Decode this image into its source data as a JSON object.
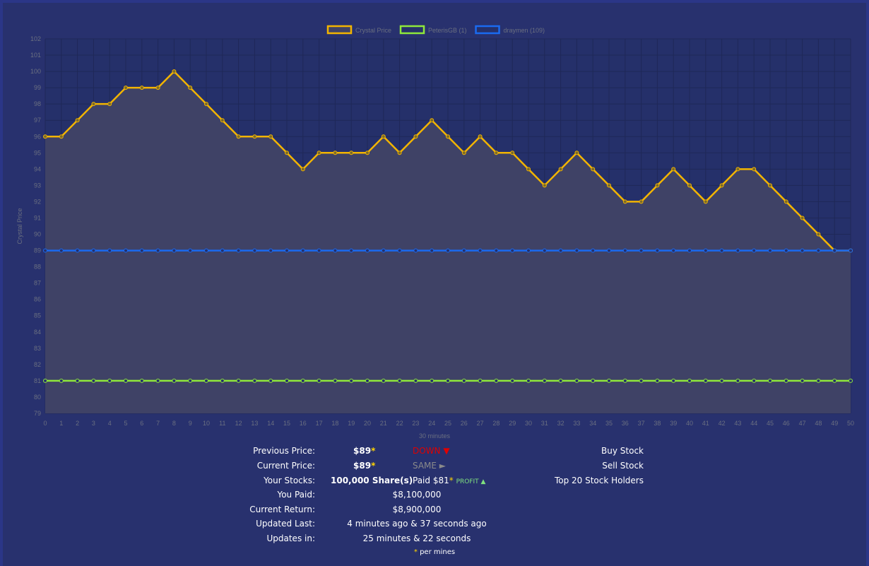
{
  "chart_data": {
    "type": "line",
    "title": "",
    "xlabel": "30 minutes",
    "ylabel": "Crystal Price",
    "ylim": [
      79,
      102
    ],
    "xlim": [
      0,
      50
    ],
    "grid": true,
    "legend_position": "top-center",
    "x": [
      0,
      1,
      2,
      3,
      4,
      5,
      6,
      7,
      8,
      9,
      10,
      11,
      12,
      13,
      14,
      15,
      16,
      17,
      18,
      19,
      20,
      21,
      22,
      23,
      24,
      25,
      26,
      27,
      28,
      29,
      30,
      31,
      32,
      33,
      34,
      35,
      36,
      37,
      38,
      39,
      40,
      41,
      42,
      43,
      44,
      45,
      46,
      47,
      48,
      49,
      50
    ],
    "series": [
      {
        "name": "Crystal Price",
        "color": "#f2b400",
        "fill": true,
        "values": [
          96,
          96,
          97,
          98,
          98,
          99,
          99,
          99,
          100,
          99,
          98,
          97,
          96,
          96,
          96,
          95,
          94,
          95,
          95,
          95,
          95,
          96,
          95,
          96,
          97,
          96,
          95,
          96,
          95,
          95,
          94,
          93,
          94,
          95,
          94,
          93,
          92,
          92,
          93,
          94,
          93,
          92,
          93,
          94,
          94,
          93,
          92,
          91,
          90,
          89,
          89
        ]
      },
      {
        "name": "PeterisGB (1)",
        "color": "#8fe83a",
        "fill": false,
        "constant": 81
      },
      {
        "name": "draymen (109)",
        "color": "#1a6af0",
        "fill": false,
        "constant": 89
      }
    ]
  },
  "info": {
    "previous_price_label": "Previous Price:",
    "previous_price": "$89",
    "previous_trend": "DOWN ▼",
    "current_price_label": "Current Price:",
    "current_price": "$89",
    "current_trend": "SAME ►",
    "your_stocks_label": "Your Stocks:",
    "your_stocks": "100,000 Share(s)",
    "paid_per": "Paid $81",
    "profit": "PROFIT ▲",
    "you_paid_label": "You Paid:",
    "you_paid": "$8,100,000",
    "current_return_label": "Current Return:",
    "current_return": "$8,900,000",
    "updated_last_label": "Updated Last:",
    "updated_last": "4 minutes ago & 37 seconds ago",
    "updates_in_label": "Updates in:",
    "updates_in": "25 minutes & 22 seconds",
    "star": "*",
    "footnote": "per mines"
  },
  "actions": {
    "buy": "Buy Stock",
    "sell": "Sell Stock",
    "top20": "Top 20 Stock Holders"
  }
}
